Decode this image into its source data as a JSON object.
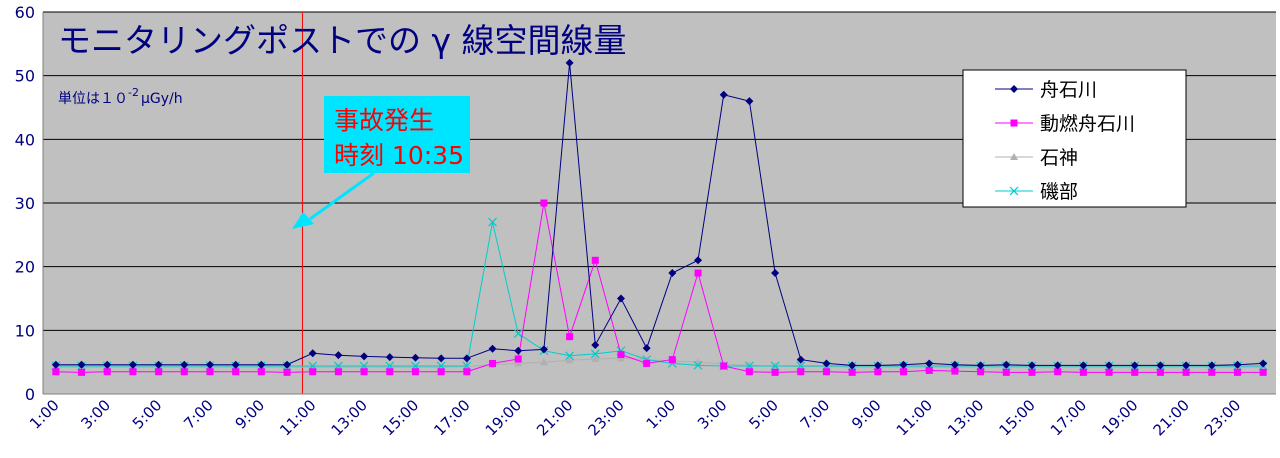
{
  "chart_data": {
    "type": "line",
    "title": "モニタリングポストでの γ 線空間線量",
    "unit_note": "単位は１０",
    "unit_exponent": "-2",
    "unit_suffix": "μGy/h",
    "ylim": [
      0,
      60
    ],
    "yticks": [
      0,
      10,
      20,
      30,
      40,
      50,
      60
    ],
    "grid": true,
    "legend_position": "top-right",
    "x_tick_labels": [
      "1:00",
      "3:00",
      "5:00",
      "7:00",
      "9:00",
      "11:00",
      "13:00",
      "15:00",
      "17:00",
      "19:00",
      "21:00",
      "23:00",
      "1:00",
      "3:00",
      "5:00",
      "7:00",
      "9:00",
      "11:00",
      "13:00",
      "15:00",
      "17:00",
      "19:00",
      "21:00",
      "23:00"
    ],
    "annotation": {
      "line1": "事故発生",
      "line2": "時刻 10:35",
      "event_index": 9.6,
      "arrow_color": "#00e5ff"
    },
    "series": [
      {
        "name": "舟石川",
        "color": "#000080",
        "marker": "diamond",
        "values": [
          4.6,
          4.6,
          4.6,
          4.6,
          4.6,
          4.6,
          4.6,
          4.6,
          4.6,
          4.6,
          6.4,
          6.1,
          5.9,
          5.8,
          5.7,
          5.6,
          5.6,
          7.1,
          6.8,
          7.0,
          52.0,
          7.7,
          15.0,
          7.2,
          19.0,
          21.0,
          47.0,
          46.0,
          19.0,
          5.4,
          4.8,
          4.5,
          4.5,
          4.6,
          4.8,
          4.6,
          4.5,
          4.6,
          4.5,
          4.5,
          4.5,
          4.5,
          4.5,
          4.5,
          4.5,
          4.5,
          4.6,
          4.8
        ]
      },
      {
        "name": "動燃舟石川",
        "color": "#ff00ff",
        "marker": "square",
        "values": [
          3.5,
          3.4,
          3.5,
          3.5,
          3.5,
          3.5,
          3.5,
          3.5,
          3.5,
          3.4,
          3.5,
          3.5,
          3.5,
          3.5,
          3.5,
          3.5,
          3.5,
          4.8,
          5.5,
          30.0,
          9.0,
          21.0,
          6.2,
          4.8,
          5.4,
          19.0,
          4.4,
          3.5,
          3.4,
          3.5,
          3.5,
          3.4,
          3.5,
          3.5,
          3.7,
          3.6,
          3.5,
          3.4,
          3.4,
          3.5,
          3.4,
          3.4,
          3.4,
          3.4,
          3.4,
          3.4,
          3.4,
          3.4
        ]
      },
      {
        "name": "石神",
        "color": "#b0b0b0",
        "marker": "triangle",
        "values": [
          4.2,
          4.2,
          4.2,
          4.2,
          4.2,
          4.2,
          4.2,
          4.2,
          4.2,
          4.2,
          4.2,
          4.2,
          4.2,
          4.2,
          4.2,
          4.2,
          4.3,
          4.6,
          4.8,
          5.0,
          5.3,
          5.5,
          5.6,
          5.4,
          5.2,
          5.0,
          4.7,
          4.5,
          4.4,
          4.3,
          4.3,
          4.2,
          4.2,
          4.2,
          4.2,
          4.2,
          4.2,
          4.2,
          4.2,
          4.2,
          4.2,
          4.2,
          4.2,
          4.2,
          4.2,
          4.2,
          4.2,
          4.2
        ]
      },
      {
        "name": "磯部",
        "color": "#00cccc",
        "marker": "x",
        "values": [
          4.4,
          4.4,
          4.4,
          4.4,
          4.4,
          4.4,
          4.4,
          4.4,
          4.4,
          4.4,
          4.4,
          4.4,
          4.4,
          4.4,
          4.4,
          4.4,
          4.4,
          27.0,
          9.5,
          6.8,
          6.0,
          6.3,
          6.8,
          5.4,
          4.8,
          4.5,
          4.4,
          4.4,
          4.4,
          4.4,
          4.4,
          4.4,
          4.4,
          4.4,
          4.4,
          4.4,
          4.4,
          4.4,
          4.4,
          4.4,
          4.4,
          4.4,
          4.4,
          4.4,
          4.4,
          4.4,
          4.4,
          4.4
        ]
      }
    ]
  }
}
